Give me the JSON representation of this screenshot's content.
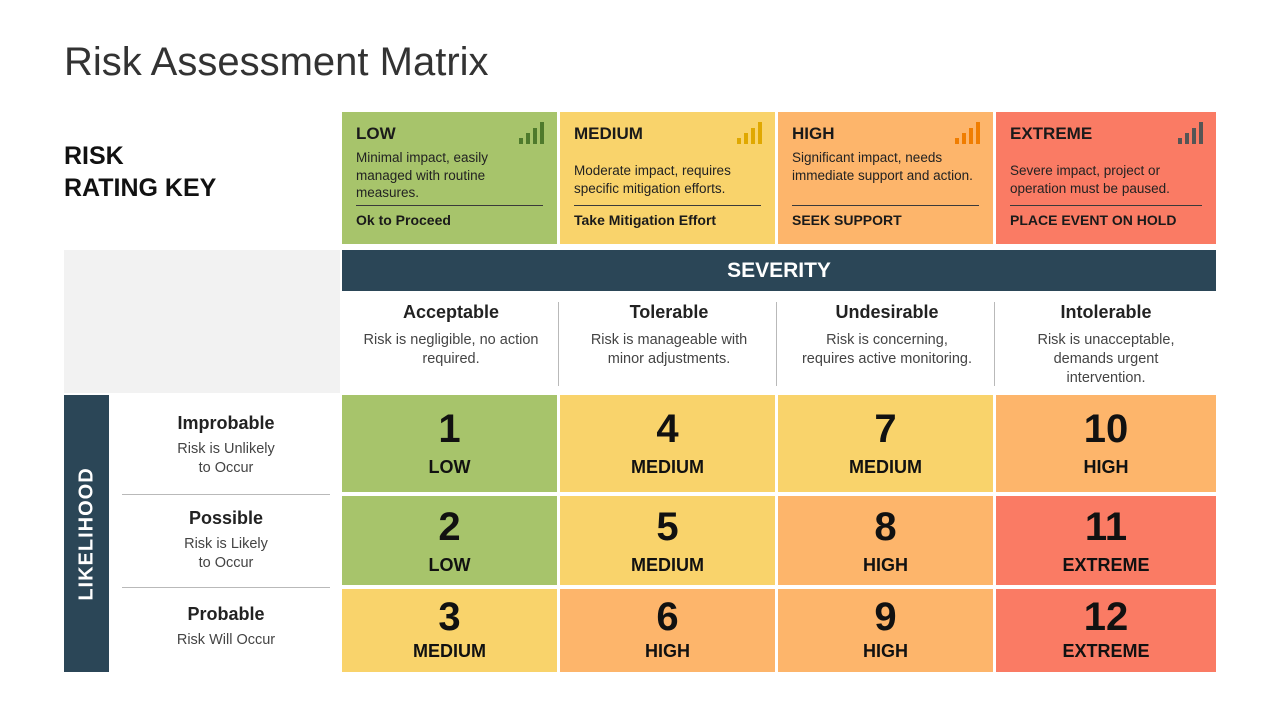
{
  "title": "Risk Assessment Matrix",
  "rating_key": {
    "line1": "RISK",
    "line2": "RATING KEY"
  },
  "key_cards": [
    {
      "name": "LOW",
      "description": "Minimal impact, easily managed with routine measures.",
      "action": "Ok to Proceed",
      "color": "#a7c46b",
      "icon": "signal-bars-icon",
      "icon_color": "#4e7a2c"
    },
    {
      "name": "MEDIUM",
      "description": "Moderate impact, requires specific mitigation efforts.",
      "action": "Take Mitigation Effort",
      "color": "#f9d36b",
      "icon": "signal-bars-icon",
      "icon_color": "#e0a800"
    },
    {
      "name": "HIGH",
      "description": "Significant impact, needs immediate support and action.",
      "action": "SEEK SUPPORT",
      "color": "#fdb56b",
      "icon": "signal-bars-icon",
      "icon_color": "#f07d00"
    },
    {
      "name": "EXTREME",
      "description": "Severe impact, project or operation must be paused.",
      "action": "PLACE EVENT ON HOLD",
      "color": "#fa7b64",
      "icon": "signal-bars-icon",
      "icon_color": "#555555"
    }
  ],
  "severity": {
    "header": "SEVERITY",
    "columns": [
      {
        "name": "Acceptable",
        "description": "Risk is negligible, no action required."
      },
      {
        "name": "Tolerable",
        "description": "Risk is manageable with minor adjustments."
      },
      {
        "name": "Undesirable",
        "description": "Risk is concerning, requires active monitoring."
      },
      {
        "name": "Intolerable",
        "description": "Risk is unacceptable, demands urgent intervention."
      }
    ]
  },
  "likelihood": {
    "header": "LIKELIHOOD",
    "rows": [
      {
        "name": "Improbable",
        "description": "Risk is Unlikely\nto Occur"
      },
      {
        "name": "Possible",
        "description": "Risk is Likely\nto Occur"
      },
      {
        "name": "Probable",
        "description": "Risk Will Occur"
      }
    ]
  },
  "matrix": [
    [
      {
        "score": "1",
        "level": "LOW",
        "color": "#a7c46b"
      },
      {
        "score": "4",
        "level": "MEDIUM",
        "color": "#f9d36b"
      },
      {
        "score": "7",
        "level": "MEDIUM",
        "color": "#f9d36b"
      },
      {
        "score": "10",
        "level": "HIGH",
        "color": "#fdb56b"
      }
    ],
    [
      {
        "score": "2",
        "level": "LOW",
        "color": "#a7c46b"
      },
      {
        "score": "5",
        "level": "MEDIUM",
        "color": "#f9d36b"
      },
      {
        "score": "8",
        "level": "HIGH",
        "color": "#fdb56b"
      },
      {
        "score": "11",
        "level": "EXTREME",
        "color": "#fa7b64"
      }
    ],
    [
      {
        "score": "3",
        "level": "MEDIUM",
        "color": "#f9d36b"
      },
      {
        "score": "6",
        "level": "HIGH",
        "color": "#fdb56b"
      },
      {
        "score": "9",
        "level": "HIGH",
        "color": "#fdb56b"
      },
      {
        "score": "12",
        "level": "EXTREME",
        "color": "#fa7b64"
      }
    ]
  ]
}
